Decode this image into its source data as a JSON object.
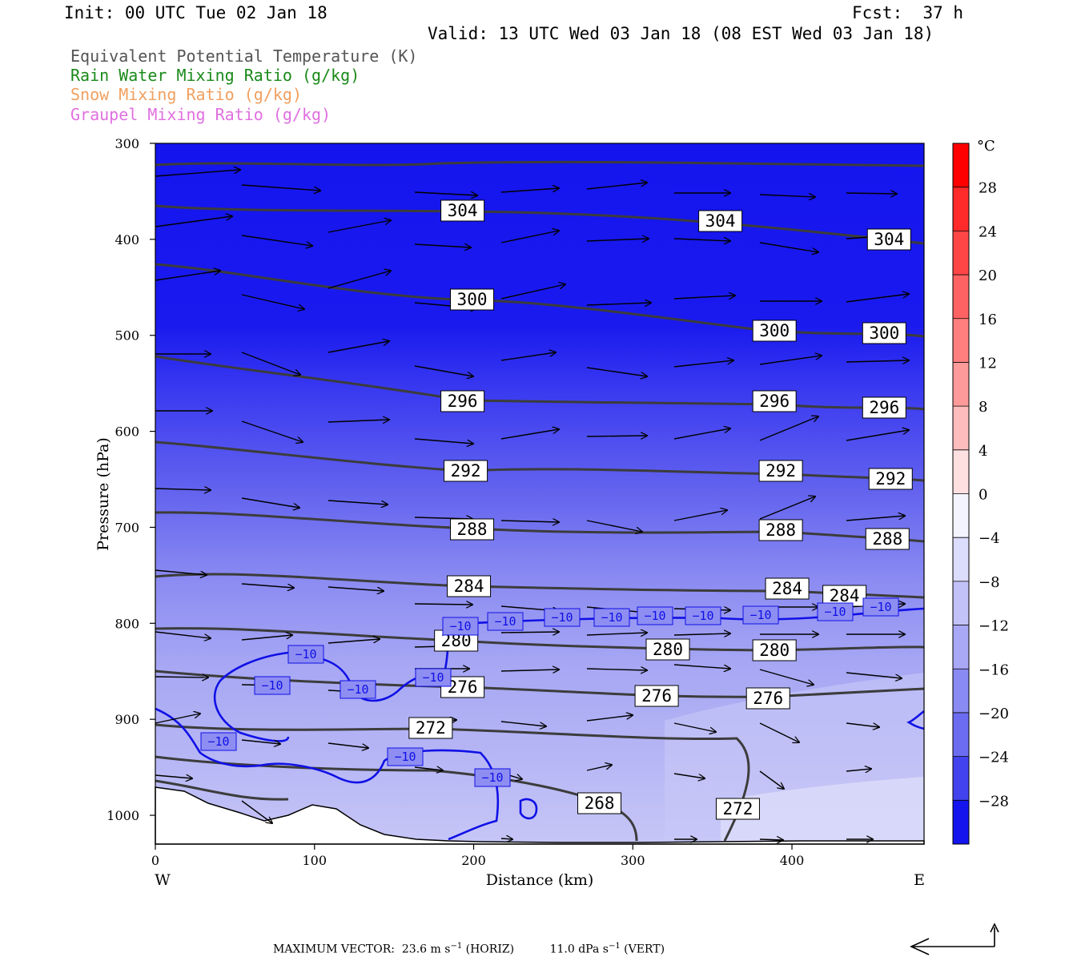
{
  "header": {
    "init": "Init: 00 UTC Tue 02 Jan 18",
    "fcst": "Fcst:  37 h",
    "valid": "Valid: 13 UTC Wed 03 Jan 18 (08 EST Wed 03 Jan 18)"
  },
  "legend": [
    {
      "label": "Equivalent Potential Temperature (K)",
      "color": "#555555"
    },
    {
      "label": "Rain Water Mixing Ratio (g/kg)",
      "color": "#1a8a1a"
    },
    {
      "label": "Snow Mixing Ratio (g/kg)",
      "color": "#f0a060"
    },
    {
      "label": "Graupel Mixing Ratio (g/kg)",
      "color": "#e070e0"
    }
  ],
  "chart_data": {
    "type": "contour",
    "xlabel": "Distance (km)",
    "ylabel": "Pressure (hPa)",
    "xlim": [
      0,
      483
    ],
    "ylim": [
      1030,
      300
    ],
    "x_ticks": [
      0,
      100,
      200,
      300,
      400
    ],
    "y_ticks": [
      300,
      400,
      500,
      600,
      700,
      800,
      900,
      1000
    ],
    "x_end_labels": {
      "left": "W",
      "right": "E"
    },
    "theta_e_contours": [
      {
        "value": 304,
        "label_x": [
          193,
          355,
          461
        ]
      },
      {
        "value": 300,
        "label_x": [
          199,
          389,
          458
        ]
      },
      {
        "value": 296,
        "label_x": [
          193,
          389,
          458
        ]
      },
      {
        "value": 292,
        "label_x": [
          195,
          393,
          462
        ]
      },
      {
        "value": 288,
        "label_x": [
          199,
          393,
          460
        ]
      },
      {
        "value": 284,
        "label_x": [
          197,
          397,
          433
        ]
      },
      {
        "value": 280,
        "label_x": [
          189,
          322,
          389
        ]
      },
      {
        "value": 276,
        "label_x": [
          193,
          315,
          385
        ]
      },
      {
        "value": 272,
        "label_x": [
          173,
          366
        ]
      },
      {
        "value": 268,
        "label_x": [
          279
        ]
      }
    ],
    "temperature_contour_label": "−10",
    "colorbar": {
      "unit": "°C",
      "labels": [
        "28",
        "24",
        "20",
        "16",
        "12",
        "8",
        "4",
        "0",
        "−4",
        "−8",
        "−12",
        "−16",
        "−20",
        "−24",
        "−28"
      ]
    }
  },
  "footer": {
    "max_vector_label": "MAXIMUM VECTOR:",
    "horiz_value": "23.6 m s",
    "horiz_unit": "(HORIZ)",
    "vert_value": "11.0 dPa s",
    "vert_unit": "(VERT)",
    "exponent": "−1"
  }
}
